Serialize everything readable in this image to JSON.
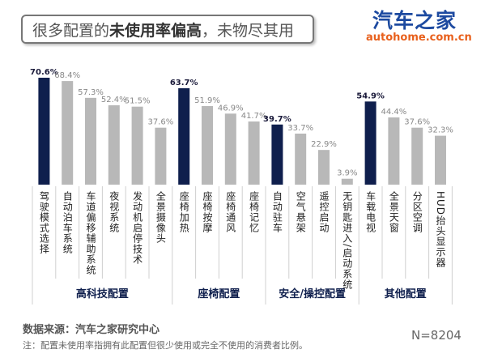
{
  "title": {
    "normal1": "很多配置的",
    "bold": "未使用率偏高",
    "normal2": "，未物尽其用"
  },
  "logo": {
    "cn": "汽车之家",
    "en": "autohome.com.cn"
  },
  "chart_data": {
    "type": "bar",
    "categories": [
      "驾驶模式选择",
      "自动泊车系统",
      "车道偏移辅助系统",
      "夜视系统",
      "发动机启停技术",
      "全景摄像头",
      "座椅加热",
      "座椅按摩",
      "座椅通风",
      "座椅记忆",
      "自动驻车",
      "空气悬架",
      "遥控启动",
      "无钥匙进入/启动系统",
      "车载电视",
      "全景天窗",
      "分区空调",
      "HUD抬头显示器"
    ],
    "values": [
      70.6,
      68.4,
      57.3,
      52.4,
      51.5,
      37.6,
      63.7,
      51.9,
      46.9,
      41.7,
      39.7,
      33.7,
      22.9,
      3.9,
      54.9,
      44.4,
      37.6,
      32.3
    ],
    "value_labels": [
      "70.6%",
      "68.4%",
      "57.3%",
      "52.4%",
      "51.5%",
      "37.6%",
      "63.7%",
      "51.9%",
      "46.9%",
      "41.7%",
      "39.7%",
      "33.7%",
      "22.9%",
      "3.9%",
      "54.9%",
      "44.4%",
      "37.6%",
      "32.3%"
    ],
    "highlighted": [
      0,
      6,
      10,
      14
    ],
    "groups": [
      {
        "label": "高科技配置",
        "count": 6
      },
      {
        "label": "座椅配置",
        "count": 4
      },
      {
        "label": "安全/操控配置",
        "count": 4
      },
      {
        "label": "其他配置",
        "count": 4
      }
    ],
    "colors": {
      "highlight": "#0f1f4d",
      "normal": "#b8b8b8"
    },
    "unit": "%"
  },
  "footer": {
    "source": "数据来源：汽车之家研究中心",
    "note": "注：配置未使用率指拥有此配置但很少使用或完全不使用的消费者比例。",
    "sample": "N=8204"
  }
}
